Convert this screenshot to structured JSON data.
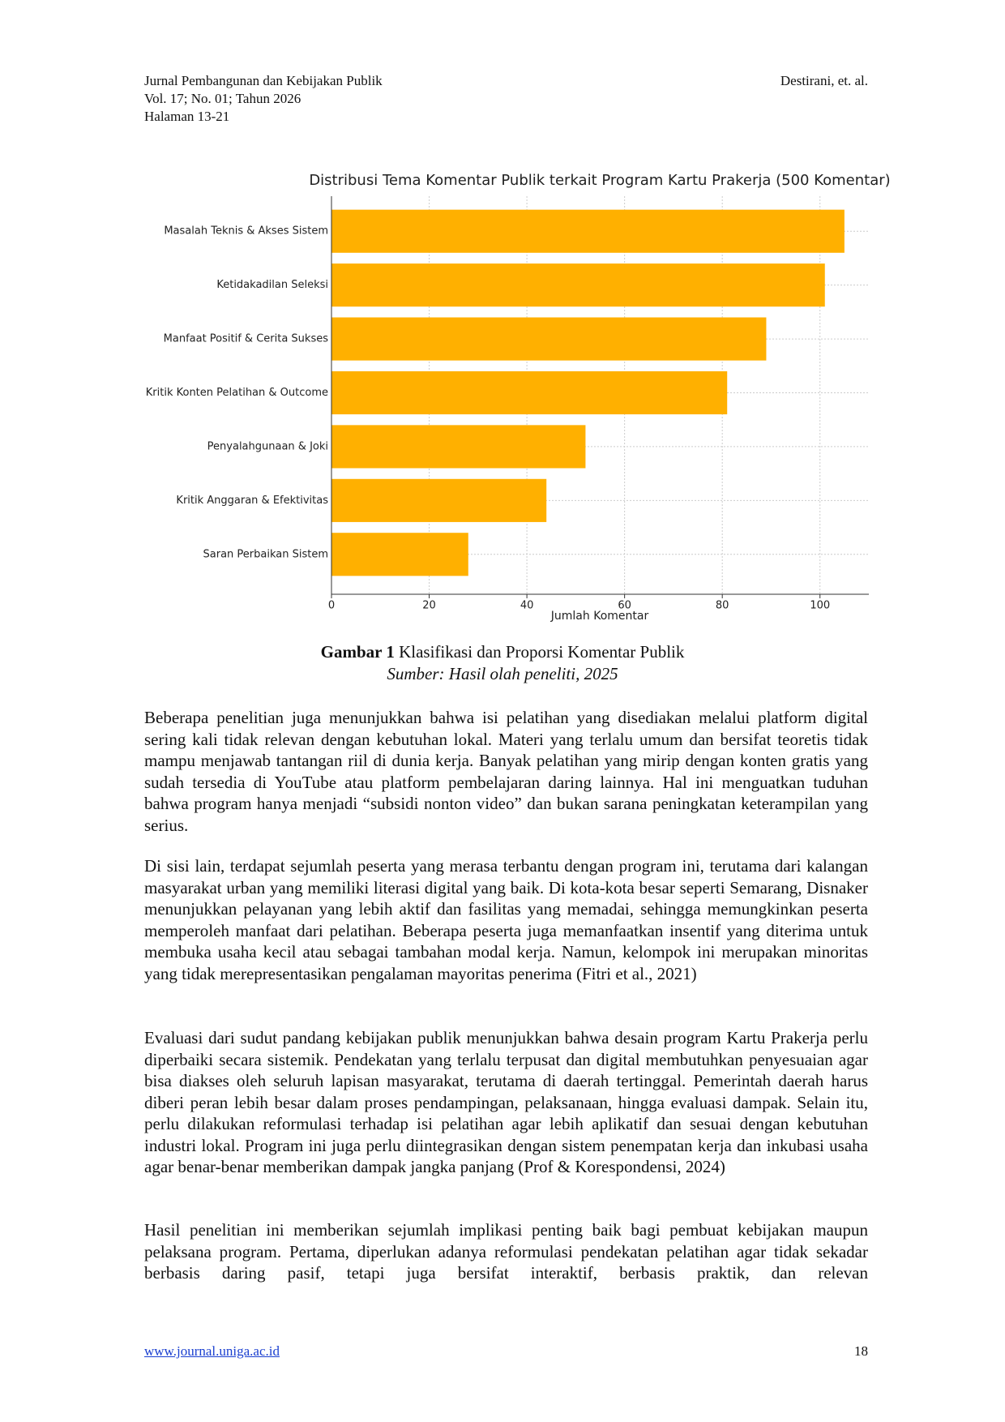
{
  "header": {
    "journal": "Jurnal Pembangunan dan Kebijakan Publik",
    "volume": "Vol. 17; No.  01; Tahun 2026",
    "pages": "Halaman 13-21",
    "authors": "Destirani, et. al."
  },
  "chart_data": {
    "type": "barh",
    "title": "Distribusi Tema Komentar Publik terkait Program Kartu Prakerja (500 Komentar)",
    "categories": [
      "Masalah Teknis & Akses Sistem",
      "Ketidakadilan Seleksi",
      "Manfaat Positif & Cerita Sukses",
      "Kritik Konten Pelatihan & Outcome",
      "Penyalahgunaan & Joki",
      "Kritik Anggaran & Efektivitas",
      "Saran Perbaikan Sistem"
    ],
    "values": [
      105,
      101,
      89,
      81,
      52,
      44,
      28
    ],
    "color": "#ffb000",
    "xlabel": "Jumlah Komentar",
    "xlim": [
      0,
      110
    ],
    "xticks": [
      0,
      20,
      40,
      60,
      80,
      100
    ],
    "grid": true
  },
  "caption": {
    "label": "Gambar 1",
    "text": "Klasifikasi dan Proporsi Komentar Publik",
    "source": "Sumber: Hasil olah peneliti, 2025"
  },
  "paragraphs": [
    "Beberapa penelitian juga menunjukkan bahwa isi pelatihan yang disediakan melalui platform digital sering kali tidak relevan dengan kebutuhan lokal. Materi yang terlalu umum dan bersifat teoretis tidak mampu menjawab tantangan riil di dunia kerja. Banyak pelatihan yang mirip dengan konten gratis yang sudah tersedia di YouTube atau platform pembelajaran daring lainnya. Hal ini menguatkan tuduhan bahwa program hanya menjadi “subsidi nonton video” dan bukan sarana peningkatan keterampilan yang serius.",
    "Di sisi lain, terdapat sejumlah peserta yang merasa terbantu dengan program ini, terutama dari kalangan masyarakat urban yang memiliki literasi digital yang baik. Di kota-kota besar seperti Semarang, Disnaker menunjukkan pelayanan yang lebih aktif dan fasilitas yang memadai, sehingga memungkinkan peserta memperoleh manfaat dari pelatihan. Beberapa peserta juga memanfaatkan insentif yang diterima untuk membuka usaha kecil atau sebagai tambahan modal kerja. Namun, kelompok ini merupakan minoritas yang tidak merepresentasikan pengalaman mayoritas penerima (Fitri et al., 2021)",
    "Evaluasi dari sudut pandang kebijakan publik menunjukkan bahwa desain program Kartu Prakerja perlu diperbaiki secara sistemik. Pendekatan yang terlalu terpusat dan digital membutuhkan penyesuaian agar bisa diakses oleh seluruh lapisan masyarakat, terutama di daerah tertinggal. Pemerintah daerah harus diberi peran lebih besar dalam proses pendampingan, pelaksanaan, hingga evaluasi dampak. Selain itu, perlu dilakukan reformulasi terhadap isi pelatihan agar lebih aplikatif dan sesuai dengan kebutuhan industri lokal. Program ini juga perlu diintegrasikan dengan sistem penempatan kerja dan inkubasi usaha agar benar-benar memberikan dampak jangka panjang (Prof & Korespondensi, 2024)",
    "Hasil penelitian ini memberikan sejumlah implikasi penting baik bagi pembuat kebijakan maupun pelaksana program. Pertama, diperlukan adanya reformulasi pendekatan pelatihan agar tidak sekadar berbasis daring pasif, tetapi juga bersifat interaktif, berbasis praktik, dan relevan"
  ],
  "footer": {
    "url": "www.journal.uniga.ac.id",
    "page": "18"
  }
}
